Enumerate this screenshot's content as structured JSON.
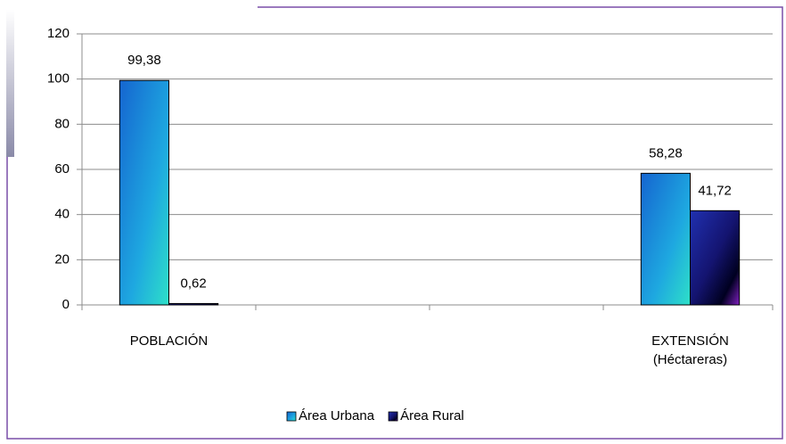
{
  "chart_data": {
    "type": "bar",
    "categories": [
      "POBLACIÓN",
      null,
      null,
      "EXTENSIÓN (Héctareras)"
    ],
    "series": [
      {
        "name": "Área Urbana",
        "color": "#1e88d8",
        "values": [
          99.38,
          null,
          null,
          58.28
        ],
        "value_labels": [
          "99,38",
          null,
          null,
          "58,28"
        ]
      },
      {
        "name": "Área Rural",
        "color": "#1a1a90",
        "values": [
          0.62,
          null,
          null,
          41.72
        ],
        "value_labels": [
          "0,62",
          null,
          null,
          "41,72"
        ]
      }
    ],
    "ylim": [
      0,
      120
    ],
    "yticks": [
      0,
      20,
      40,
      60,
      80,
      100,
      120
    ],
    "grid": true,
    "legend": "bottom"
  }
}
